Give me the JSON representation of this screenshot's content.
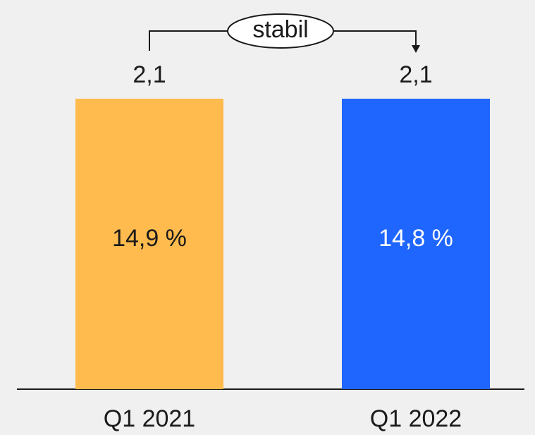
{
  "chart_data": {
    "type": "bar",
    "categories": [
      "Q1 2021",
      "Q1 2022"
    ],
    "values": [
      2.1,
      2.1
    ],
    "value_labels": [
      "2,1",
      "2,1"
    ],
    "colors": [
      "#ffbb4d",
      "#1f66ff"
    ],
    "inner_values": [
      14.9,
      14.8
    ],
    "inner_labels": [
      "14,9 %",
      "14,8 %"
    ],
    "inner_label_colors": [
      "#1a1a1a",
      "#ffffff"
    ],
    "annotation": "stabil"
  }
}
